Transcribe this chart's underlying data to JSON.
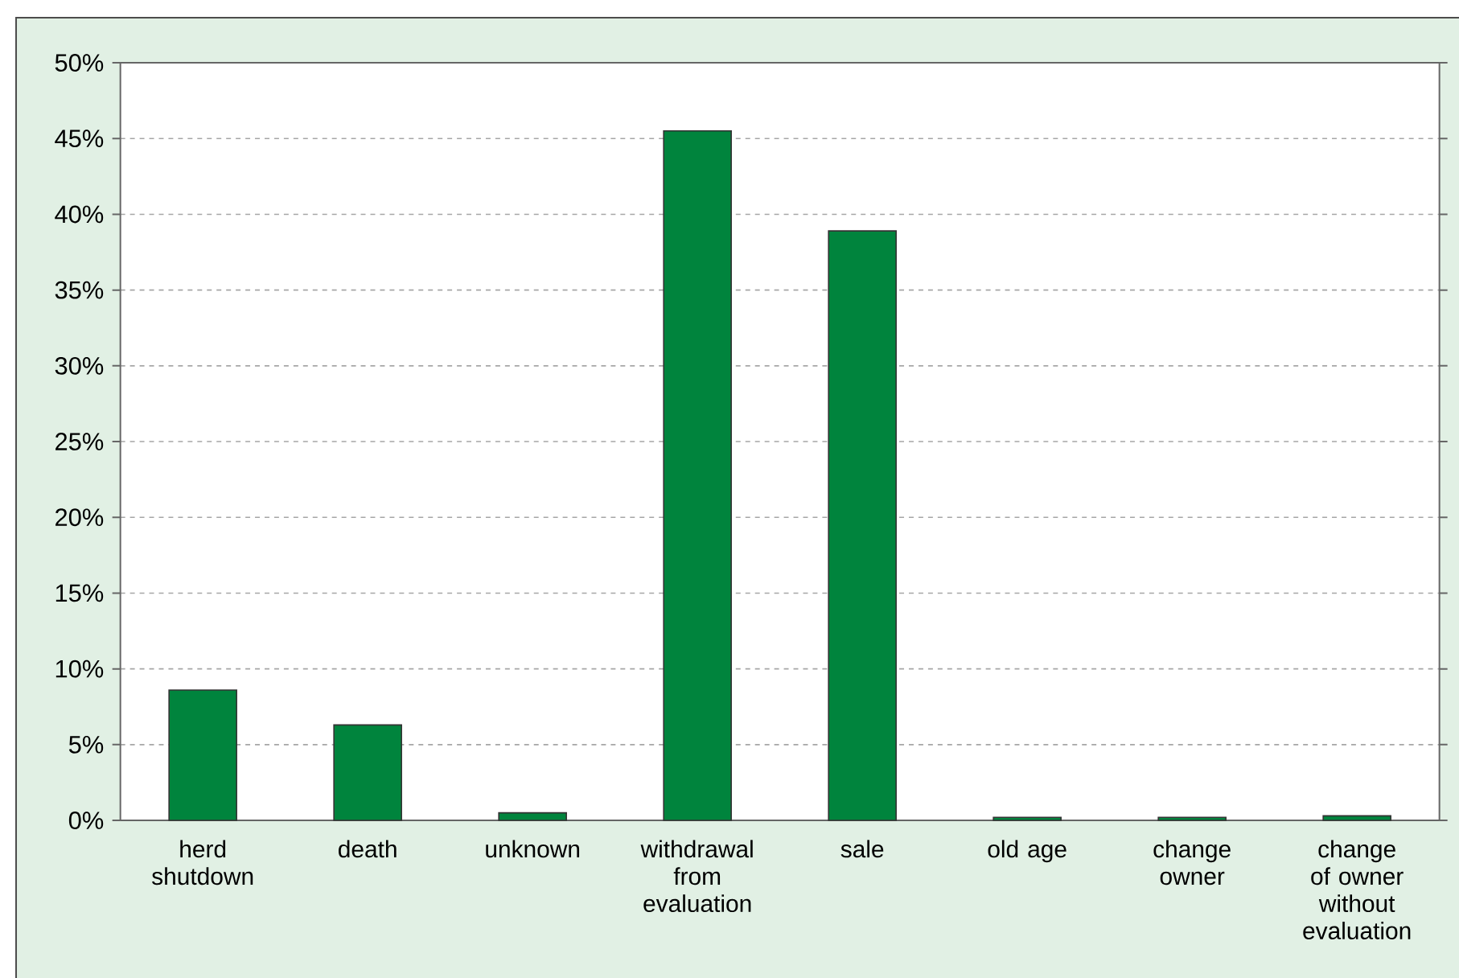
{
  "chart_data": {
    "type": "bar",
    "categories": [
      "herd shutdown",
      "death",
      "unknown",
      "withdrawal from evaluation",
      "sale",
      "old age",
      "change owner",
      "change of owner without evaluation"
    ],
    "values": [
      8.6,
      6.3,
      0.5,
      45.5,
      38.9,
      0.2,
      0.2,
      0.3
    ],
    "color": "#00843d",
    "ylim": [
      0,
      50
    ],
    "yticks": [
      {
        "value": 0,
        "label": "0%"
      },
      {
        "value": 5,
        "label": "5%"
      },
      {
        "value": 10,
        "label": "10%"
      },
      {
        "value": 15,
        "label": "15%"
      },
      {
        "value": 20,
        "label": "20%"
      },
      {
        "value": 25,
        "label": "25%"
      },
      {
        "value": 30,
        "label": "30%"
      },
      {
        "value": 35,
        "label": "35%"
      },
      {
        "value": 40,
        "label": "40%"
      },
      {
        "value": 45,
        "label": "45%"
      },
      {
        "value": 50,
        "label": "50%"
      }
    ],
    "grid": "y"
  }
}
